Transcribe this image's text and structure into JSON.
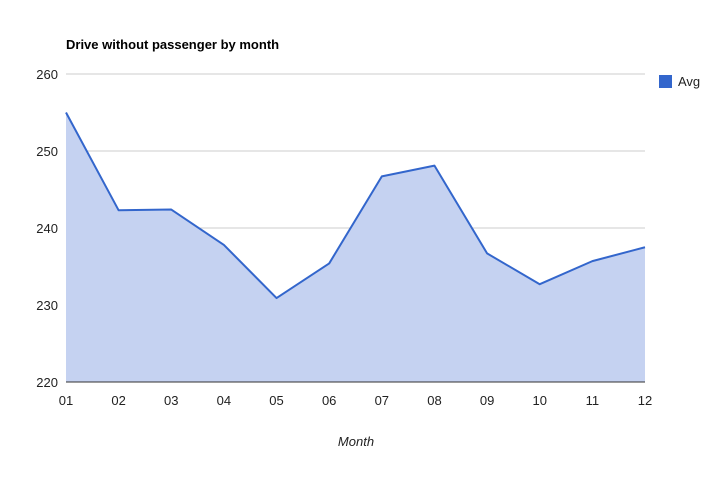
{
  "chart_data": {
    "type": "area",
    "title": "Drive without passenger by month",
    "xlabel": "Month",
    "ylabel": "",
    "categories": [
      "01",
      "02",
      "03",
      "04",
      "05",
      "06",
      "07",
      "08",
      "09",
      "10",
      "11",
      "12"
    ],
    "series": [
      {
        "name": "Avg",
        "values": [
          255,
          242.3,
          242.4,
          237.8,
          230.9,
          235.4,
          246.7,
          248.1,
          236.7,
          232.7,
          235.7,
          237.5
        ]
      }
    ],
    "ylim": [
      220,
      260
    ],
    "yticks": [
      220,
      230,
      240,
      250,
      260
    ],
    "grid": true,
    "legend_position": "right",
    "colors": {
      "line": "#3366cc",
      "fill": "#c5d2f1",
      "grid": "#cccccc",
      "baseline": "#333333"
    }
  }
}
